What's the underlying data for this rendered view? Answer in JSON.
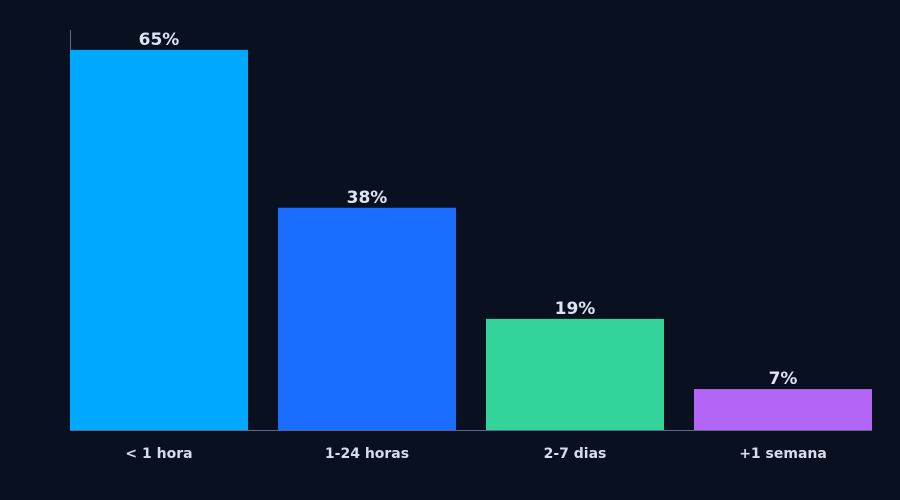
{
  "chart_data": {
    "type": "bar",
    "categories": [
      "< 1 hora",
      "1-24 horas",
      "2-7 dias",
      "+1 semana"
    ],
    "values": [
      65,
      38,
      19,
      7
    ],
    "value_labels": [
      "65%",
      "38%",
      "19%",
      "7%"
    ],
    "colors": [
      "#00a8ff",
      "#1a6dff",
      "#34d399",
      "#b366f5"
    ],
    "ylim": [
      0,
      68.4
    ],
    "grid": false
  }
}
